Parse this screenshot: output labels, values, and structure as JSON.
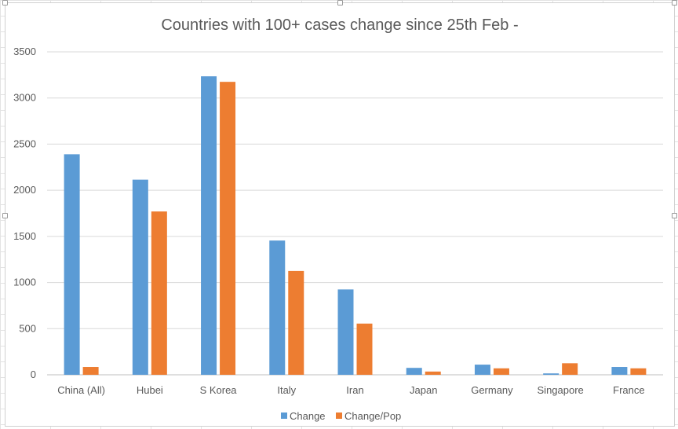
{
  "chart_data": {
    "type": "bar",
    "title": "Countries with 100+ cases change since 25th Feb -",
    "xlabel": "",
    "ylabel": "",
    "categories": [
      "China (All)",
      "Hubei",
      "S Korea",
      "Italy",
      "Iran",
      "Japan",
      "Germany",
      "Singapore",
      "France"
    ],
    "series": [
      {
        "name": "Change",
        "color": "#5b9bd5",
        "values": [
          2390,
          2115,
          3235,
          1455,
          925,
          75,
          110,
          15,
          85
        ]
      },
      {
        "name": "Change/Pop",
        "color": "#ed7d31",
        "values": [
          85,
          1770,
          3175,
          1125,
          555,
          35,
          70,
          125,
          70
        ]
      }
    ],
    "ylim": [
      0,
      3500
    ],
    "yticks": [
      "0",
      "500",
      "1000",
      "1500",
      "2000",
      "2500",
      "3000",
      "3500"
    ],
    "grid": true,
    "legend": "bottom"
  }
}
